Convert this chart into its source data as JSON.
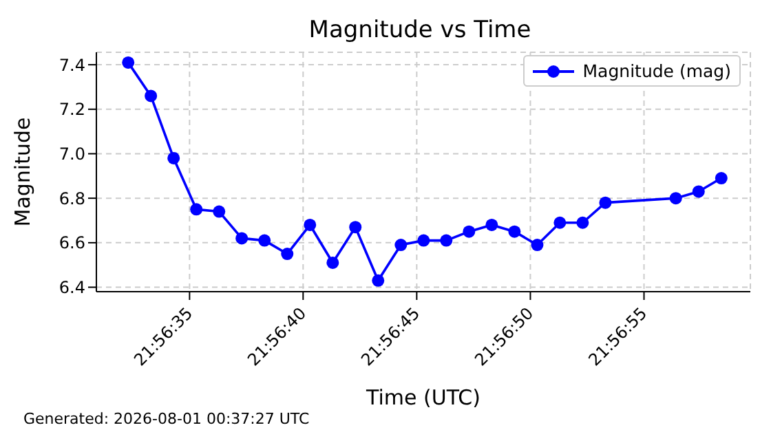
{
  "chart_data": {
    "type": "line",
    "title": "Magnitude vs Time",
    "xlabel": "Time (UTC)",
    "ylabel": "Magnitude",
    "annotations": [
      "Generated: 2026-08-01 00:37:27 UTC"
    ],
    "x": [
      21.942306,
      21.942583,
      21.942861,
      21.943139,
      21.943417,
      21.943694,
      21.943972,
      21.94425,
      21.944528,
      21.944806,
      21.945083,
      21.945361,
      21.945639,
      21.945917,
      21.946194,
      21.946472,
      21.94675,
      21.947028,
      21.947306,
      21.947583,
      21.947861,
      21.948139,
      21.949,
      21.949278,
      21.949556
    ],
    "series": [
      {
        "name": "Magnitude (mag)",
        "color": "#0000ff",
        "values": [
          7.41,
          7.26,
          6.98,
          6.75,
          6.74,
          6.62,
          6.61,
          6.55,
          6.68,
          6.51,
          6.67,
          6.43,
          6.59,
          6.61,
          6.61,
          6.65,
          6.68,
          6.65,
          6.59,
          6.69,
          6.69,
          6.78,
          6.8,
          6.83,
          6.89
        ]
      }
    ],
    "xlim": [
      21.941917,
      21.949911
    ],
    "xticks": [
      {
        "value": 21.943056,
        "label": "21:56:35"
      },
      {
        "value": 21.944444,
        "label": "21:56:40"
      },
      {
        "value": 21.945833,
        "label": "21:56:45"
      },
      {
        "value": 21.947222,
        "label": "21:56:50"
      },
      {
        "value": 21.948611,
        "label": "21:56:55"
      }
    ],
    "ylim": [
      6.38,
      7.456
    ],
    "yticks": [
      6.4,
      6.6,
      6.8,
      {
        "value": 7,
        "label": "7.0"
      },
      7.2,
      7.4
    ],
    "grid": true,
    "legend": "top right",
    "marker": "circle",
    "line_style": "solid"
  }
}
